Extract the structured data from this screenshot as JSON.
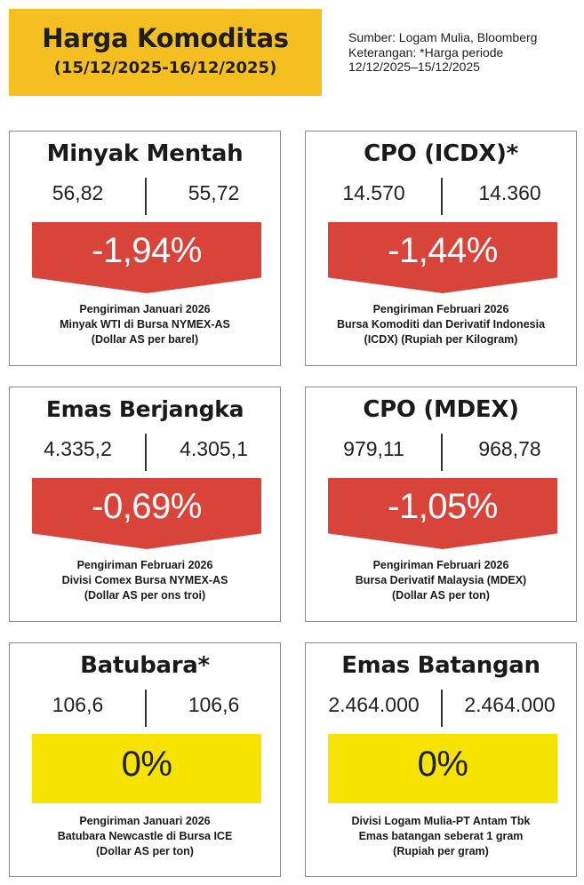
{
  "header": {
    "title": "Harga Komoditas",
    "date_range": "(15/12/2025-16/12/2025)"
  },
  "source": {
    "line1": "Sumber: Logam Mulia, Bloomberg",
    "line2": "Keterangan: *Harga periode",
    "line3": "12/12/2025–15/12/2025"
  },
  "colors": {
    "header_bg": "#f6bf21",
    "decline": "#d9443a",
    "unchanged": "#f7e300"
  },
  "cards": [
    {
      "title": "Minyak Mentah",
      "value_prev": "56,82",
      "value_curr": "55,72",
      "change": "-1,94%",
      "direction": "down",
      "desc1": "Pengiriman Januari 2026",
      "desc2": "Minyak WTI di Bursa NYMEX-AS",
      "desc3": "(Dollar AS per barel)"
    },
    {
      "title": "CPO (ICDX)*",
      "value_prev": "14.570",
      "value_curr": "14.360",
      "change": "-1,44%",
      "direction": "down",
      "desc1": "Pengiriman Februari 2026",
      "desc2": "Bursa Komoditi dan Derivatif Indonesia",
      "desc3": "(ICDX) (Rupiah per Kilogram)"
    },
    {
      "title": "Emas Berjangka",
      "value_prev": "4.335,2",
      "value_curr": "4.305,1",
      "change": "-0,69%",
      "direction": "down",
      "desc1": "Pengiriman Februari 2026",
      "desc2": "Divisi Comex Bursa NYMEX-AS",
      "desc3": "(Dollar AS per ons troi)"
    },
    {
      "title": "CPO (MDEX)",
      "value_prev": "979,11",
      "value_curr": "968,78",
      "change": "-1,05%",
      "direction": "down",
      "desc1": "Pengiriman Februari 2026",
      "desc2": "Bursa Derivatif Malaysia (MDEX)",
      "desc3": "(Dollar AS per ton)"
    },
    {
      "title": "Batubara*",
      "value_prev": "106,6",
      "value_curr": "106,6",
      "change": "0%",
      "direction": "flat",
      "desc1": "Pengiriman Januari 2026",
      "desc2": "Batubara Newcastle di Bursa ICE",
      "desc3": "(Dollar AS per ton)"
    },
    {
      "title": "Emas Batangan",
      "value_prev": "2.464.000",
      "value_curr": "2.464.000",
      "change": "0%",
      "direction": "flat",
      "desc1": "Divisi Logam Mulia-PT Antam Tbk",
      "desc2": "Emas batangan seberat 1 gram",
      "desc3": "(Rupiah per gram)"
    }
  ]
}
